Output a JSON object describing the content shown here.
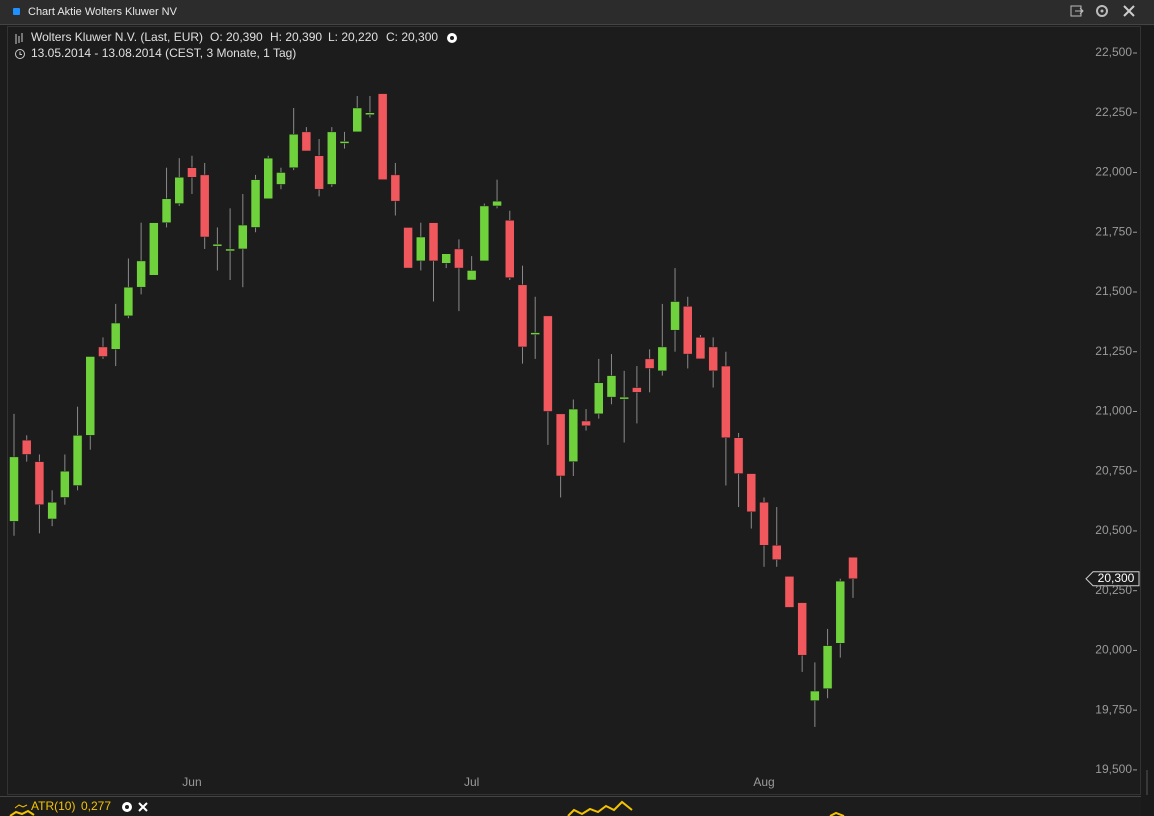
{
  "window": {
    "title": "Chart Aktie Wolters Kluwer NV"
  },
  "chart_data": {
    "type": "candlestick",
    "instrument": "Wolters Kluwer N.V. (Last, EUR)",
    "ohlc_labels": [
      "O: 20,390",
      "H: 20,390",
      "L: 20,220",
      "C: 20,300"
    ],
    "period": "13.05.2014 - 13.08.2014 (CEST, 3 Monate, 1 Tag)",
    "last_label": "20,300",
    "categories": [
      null,
      null,
      null,
      null,
      null,
      null,
      null,
      null,
      null,
      null,
      null,
      null,
      null,
      null,
      "Jun",
      null,
      null,
      null,
      null,
      null,
      null,
      null,
      null,
      null,
      null,
      null,
      null,
      null,
      null,
      null,
      null,
      null,
      null,
      null,
      null,
      null,
      "Jul",
      null,
      null,
      null,
      null,
      null,
      null,
      null,
      null,
      null,
      null,
      null,
      null,
      null,
      null,
      null,
      null,
      null,
      null,
      null,
      null,
      null,
      null,
      "Aug",
      null,
      null,
      null,
      null,
      null,
      null,
      null
    ],
    "open": [
      20.54,
      20.88,
      20.79,
      20.55,
      20.64,
      20.69,
      20.9,
      21.27,
      21.26,
      21.4,
      21.52,
      21.57,
      21.79,
      21.87,
      22.02,
      21.99,
      21.7,
      21.68,
      21.68,
      21.77,
      21.89,
      21.95,
      22.02,
      22.17,
      22.07,
      21.95,
      22.13,
      22.17,
      22.25,
      22.33,
      21.99,
      21.77,
      21.63,
      21.79,
      21.62,
      21.68,
      21.55,
      21.63,
      21.86,
      21.8,
      21.53,
      21.33,
      21.4,
      20.99,
      20.79,
      20.96,
      20.99,
      21.06,
      21.06,
      21.1,
      21.22,
      21.17,
      21.34,
      21.44,
      21.31,
      21.27,
      21.19,
      20.89,
      20.74,
      20.62,
      20.44,
      20.31,
      20.2,
      19.79,
      19.84,
      20.03,
      20.39
    ],
    "high": [
      20.99,
      20.9,
      20.82,
      20.67,
      20.82,
      21.02,
      21.23,
      21.31,
      21.45,
      21.64,
      21.79,
      21.79,
      22.02,
      22.06,
      22.07,
      22.04,
      21.77,
      21.85,
      21.91,
      21.99,
      22.07,
      22.02,
      22.27,
      22.19,
      22.14,
      22.19,
      22.17,
      22.32,
      22.32,
      22.33,
      22.04,
      21.77,
      21.79,
      21.79,
      21.66,
      21.72,
      21.65,
      21.87,
      21.97,
      21.84,
      21.61,
      21.48,
      21.4,
      20.99,
      21.05,
      21.01,
      21.22,
      21.24,
      21.17,
      21.19,
      21.26,
      21.45,
      21.6,
      21.48,
      21.32,
      21.31,
      21.25,
      20.91,
      20.74,
      20.64,
      20.6,
      20.31,
      20.2,
      19.95,
      20.09,
      20.3,
      20.39
    ],
    "low": [
      20.48,
      20.79,
      20.49,
      20.52,
      20.61,
      20.67,
      20.84,
      21.22,
      21.19,
      21.39,
      21.49,
      21.57,
      21.77,
      21.86,
      21.91,
      21.68,
      21.59,
      21.55,
      21.52,
      21.75,
      21.89,
      21.93,
      22.01,
      22.09,
      21.9,
      21.94,
      22.1,
      22.17,
      22.23,
      21.97,
      21.82,
      21.6,
      21.59,
      21.46,
      21.6,
      21.42,
      21.55,
      21.63,
      21.85,
      21.55,
      21.2,
      21.22,
      20.86,
      20.64,
      20.73,
      20.92,
      20.97,
      21.03,
      20.87,
      20.95,
      21.08,
      21.15,
      21.25,
      21.18,
      21.22,
      21.1,
      20.69,
      20.6,
      20.51,
      20.35,
      20.35,
      20.18,
      19.91,
      19.68,
      19.8,
      19.97,
      20.22
    ],
    "close": [
      20.81,
      20.82,
      20.61,
      20.62,
      20.75,
      20.9,
      21.23,
      21.23,
      21.37,
      21.52,
      21.63,
      21.79,
      21.89,
      21.98,
      21.98,
      21.73,
      21.7,
      21.68,
      21.78,
      21.97,
      22.06,
      22.0,
      22.16,
      22.09,
      21.93,
      22.17,
      22.13,
      22.27,
      22.25,
      21.97,
      21.88,
      21.6,
      21.73,
      21.63,
      21.66,
      21.6,
      21.59,
      21.86,
      21.88,
      21.56,
      21.27,
      21.33,
      21.0,
      20.73,
      21.01,
      20.94,
      21.12,
      21.15,
      21.06,
      21.08,
      21.18,
      21.27,
      21.46,
      21.24,
      21.22,
      21.17,
      20.89,
      20.74,
      20.58,
      20.44,
      20.38,
      20.18,
      19.98,
      19.83,
      20.02,
      20.29,
      20.3
    ],
    "up_color": "#6fd13c",
    "down_color": "#f0585d",
    "wick_color": "#8a8a8a",
    "ylim": [
      19.395,
      22.613
    ],
    "yticks": [
      {
        "value": 19.5,
        "label": "19,500"
      },
      {
        "value": 19.75,
        "label": "19,750"
      },
      {
        "value": 20.0,
        "label": "20,000"
      },
      {
        "value": 20.25,
        "label": "20,250"
      },
      {
        "value": 20.5,
        "label": "20,500"
      },
      {
        "value": 20.75,
        "label": "20,750"
      },
      {
        "value": 21.0,
        "label": "21,000"
      },
      {
        "value": 21.25,
        "label": "21,250"
      },
      {
        "value": 21.5,
        "label": "21,500"
      },
      {
        "value": 21.75,
        "label": "21,750"
      },
      {
        "value": 22.0,
        "label": "22,000"
      },
      {
        "value": 22.25,
        "label": "22,250"
      },
      {
        "value": 22.5,
        "label": "22,500"
      }
    ],
    "indicator": {
      "name": "ATR(10)",
      "value_text": "0,277"
    }
  }
}
